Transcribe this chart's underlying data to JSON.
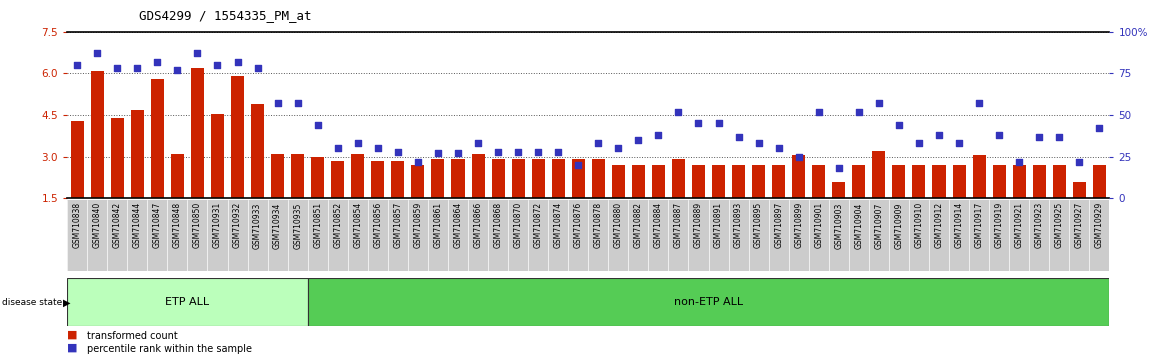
{
  "title": "GDS4299 / 1554335_PM_at",
  "samples": [
    "GSM710838",
    "GSM710840",
    "GSM710842",
    "GSM710844",
    "GSM710847",
    "GSM710848",
    "GSM710850",
    "GSM710931",
    "GSM710932",
    "GSM710933",
    "GSM710934",
    "GSM710935",
    "GSM710851",
    "GSM710852",
    "GSM710854",
    "GSM710856",
    "GSM710857",
    "GSM710859",
    "GSM710861",
    "GSM710864",
    "GSM710866",
    "GSM710868",
    "GSM710870",
    "GSM710872",
    "GSM710874",
    "GSM710876",
    "GSM710878",
    "GSM710880",
    "GSM710882",
    "GSM710884",
    "GSM710887",
    "GSM710889",
    "GSM710891",
    "GSM710893",
    "GSM710895",
    "GSM710897",
    "GSM710899",
    "GSM710901",
    "GSM710903",
    "GSM710904",
    "GSM710907",
    "GSM710909",
    "GSM710910",
    "GSM710912",
    "GSM710914",
    "GSM710917",
    "GSM710919",
    "GSM710921",
    "GSM710923",
    "GSM710925",
    "GSM710927",
    "GSM710929"
  ],
  "bar_values": [
    4.3,
    6.1,
    4.4,
    4.7,
    5.8,
    3.1,
    6.2,
    4.55,
    5.9,
    4.9,
    3.1,
    3.1,
    3.0,
    2.85,
    3.1,
    2.85,
    2.85,
    2.7,
    2.9,
    2.9,
    3.1,
    2.9,
    2.9,
    2.9,
    2.9,
    2.9,
    2.9,
    2.7,
    2.7,
    2.7,
    2.9,
    2.7,
    2.7,
    2.7,
    2.7,
    2.7,
    3.05,
    2.7,
    2.1,
    2.7,
    3.2,
    2.7,
    2.7,
    2.7,
    2.7,
    3.05,
    2.7,
    2.7,
    2.7,
    2.7,
    2.1,
    2.7
  ],
  "blue_values": [
    80,
    87,
    78,
    78,
    82,
    77,
    87,
    80,
    82,
    78,
    57,
    57,
    44,
    30,
    33,
    30,
    28,
    22,
    27,
    27,
    33,
    28,
    28,
    28,
    28,
    20,
    33,
    30,
    35,
    38,
    52,
    45,
    45,
    37,
    33,
    30,
    25,
    52,
    18,
    52,
    57,
    44,
    33,
    38,
    33,
    57,
    38,
    22,
    37,
    37,
    22,
    42
  ],
  "etp_count": 12,
  "non_etp_count": 40,
  "ylim_left": [
    1.5,
    7.5
  ],
  "ylim_right": [
    0,
    100
  ],
  "yticks_left": [
    1.5,
    3.0,
    4.5,
    6.0,
    7.5
  ],
  "yticks_right": [
    0,
    25,
    50,
    75,
    100
  ],
  "bar_color": "#cc2200",
  "dot_color": "#3333bb",
  "etp_light_color": "#bbffbb",
  "non_etp_color": "#55cc55",
  "label_bg_color": "#cccccc",
  "bg_color": "#ffffff"
}
